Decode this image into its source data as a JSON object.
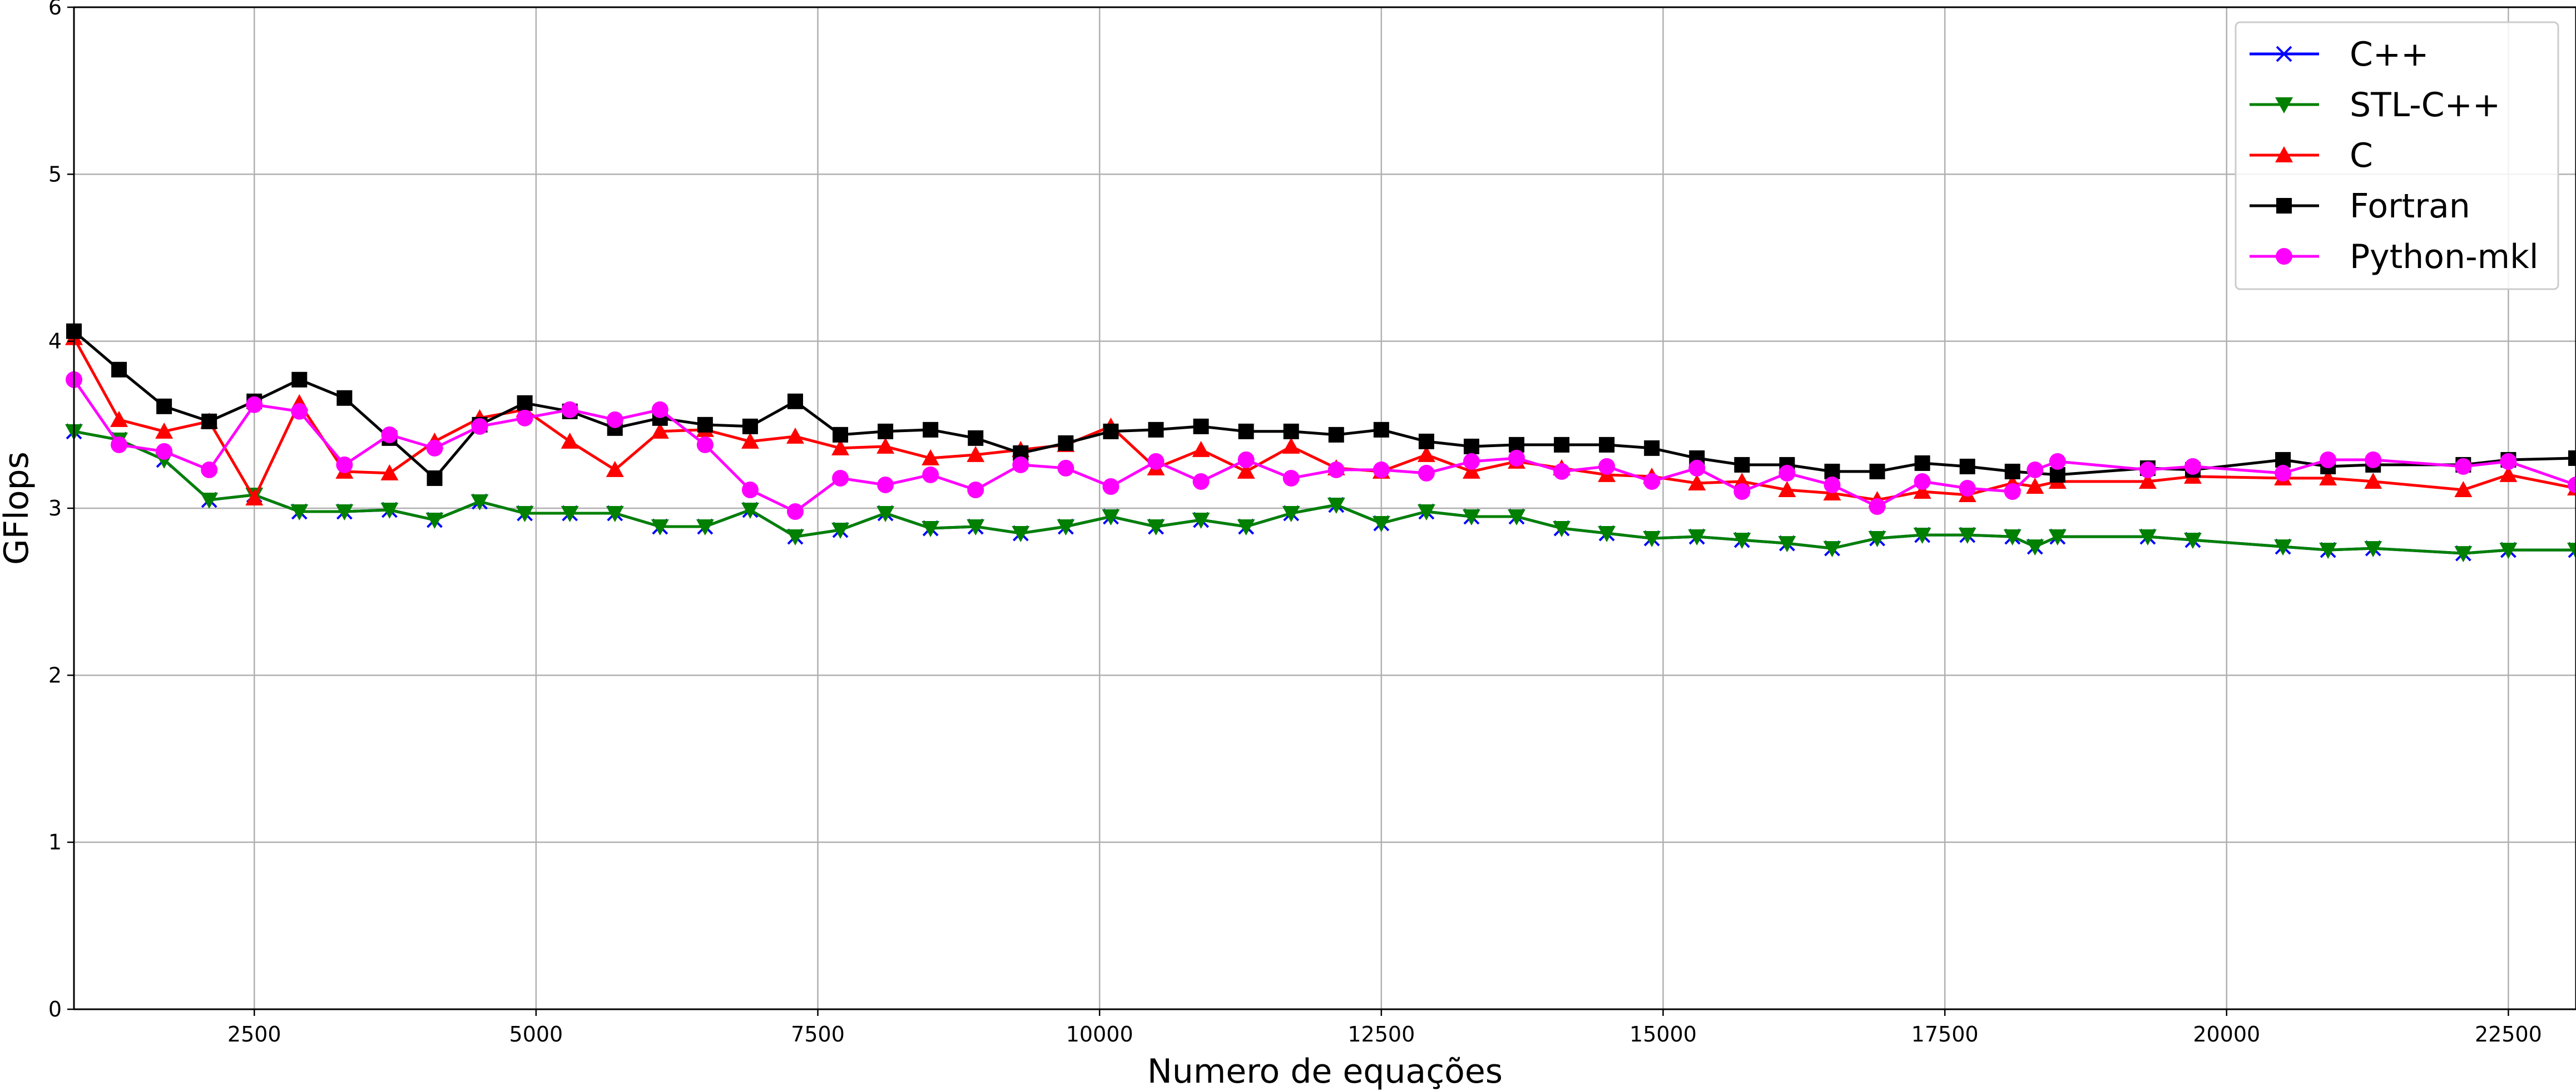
{
  "chart_data": {
    "type": "line",
    "title": "",
    "xlabel": "Numero de equações",
    "ylabel": "GFlops",
    "xlim": [
      900,
      23100
    ],
    "ylim": [
      0,
      6
    ],
    "xticks": [
      2500,
      5000,
      7500,
      10000,
      12500,
      15000,
      17500,
      20000,
      22500
    ],
    "yticks": [
      0,
      1,
      2,
      3,
      4,
      5,
      6
    ],
    "grid": true,
    "legend_position": "top-right",
    "series": [
      {
        "name": "C++",
        "color": "#0000ff",
        "marker": "x",
        "x": [
          900,
          1300,
          1700,
          2100,
          2500,
          2900,
          3300,
          3700,
          4100,
          4500,
          4900,
          5300,
          5700,
          6100,
          6500,
          6900,
          7300,
          7700,
          8100,
          8500,
          8900,
          9300,
          9700,
          10100,
          10500,
          10900,
          11300,
          11700,
          12100,
          12500,
          12900,
          13300,
          13700,
          14100,
          14500,
          14900,
          15300,
          15700,
          16100,
          16500,
          16900,
          17300,
          17700,
          18100,
          18300,
          18500,
          19300,
          19700,
          20500,
          20900,
          21300,
          22100,
          22500,
          23100
        ],
        "y": [
          3.46,
          3.41,
          3.29,
          3.05,
          3.08,
          2.98,
          2.98,
          2.99,
          2.93,
          3.04,
          2.97,
          2.97,
          2.97,
          2.89,
          2.89,
          2.99,
          2.83,
          2.87,
          2.97,
          2.88,
          2.89,
          2.85,
          2.89,
          2.95,
          2.89,
          2.93,
          2.89,
          2.97,
          3.02,
          2.91,
          2.98,
          2.95,
          2.95,
          2.88,
          2.85,
          2.82,
          2.83,
          2.81,
          2.79,
          2.76,
          2.82,
          2.84,
          2.84,
          2.83,
          2.77,
          2.83,
          2.83,
          2.81,
          2.77,
          2.75,
          2.76,
          2.73,
          2.75,
          2.75
        ]
      },
      {
        "name": "STL-C++",
        "color": "#008000",
        "marker": "v",
        "x": [
          900,
          1300,
          1700,
          2100,
          2500,
          2900,
          3300,
          3700,
          4100,
          4500,
          4900,
          5300,
          5700,
          6100,
          6500,
          6900,
          7300,
          7700,
          8100,
          8500,
          8900,
          9300,
          9700,
          10100,
          10500,
          10900,
          11300,
          11700,
          12100,
          12500,
          12900,
          13300,
          13700,
          14100,
          14500,
          14900,
          15300,
          15700,
          16100,
          16500,
          16900,
          17300,
          17700,
          18100,
          18300,
          18500,
          19300,
          19700,
          20500,
          20900,
          21300,
          22100,
          22500,
          23100
        ],
        "y": [
          3.46,
          3.41,
          3.29,
          3.05,
          3.08,
          2.98,
          2.98,
          2.99,
          2.93,
          3.04,
          2.97,
          2.97,
          2.97,
          2.89,
          2.89,
          2.99,
          2.83,
          2.87,
          2.97,
          2.88,
          2.89,
          2.85,
          2.89,
          2.95,
          2.89,
          2.93,
          2.89,
          2.97,
          3.02,
          2.91,
          2.98,
          2.95,
          2.95,
          2.88,
          2.85,
          2.82,
          2.83,
          2.81,
          2.79,
          2.76,
          2.82,
          2.84,
          2.84,
          2.83,
          2.77,
          2.83,
          2.83,
          2.81,
          2.77,
          2.75,
          2.76,
          2.73,
          2.75,
          2.75
        ]
      },
      {
        "name": "C",
        "color": "#ff0000",
        "marker": "^",
        "x": [
          900,
          1300,
          1700,
          2100,
          2500,
          2900,
          3300,
          3700,
          4100,
          4500,
          4900,
          5300,
          5700,
          6100,
          6500,
          6900,
          7300,
          7700,
          8100,
          8500,
          8900,
          9300,
          9700,
          10100,
          10500,
          10900,
          11300,
          11700,
          12100,
          12500,
          12900,
          13300,
          13700,
          14100,
          14500,
          14900,
          15300,
          15700,
          16100,
          16500,
          16900,
          17300,
          17700,
          18100,
          18300,
          18500,
          19300,
          19700,
          20500,
          20900,
          21300,
          22100,
          22500,
          23100
        ],
        "y": [
          4.02,
          3.53,
          3.46,
          3.52,
          3.06,
          3.63,
          3.22,
          3.21,
          3.4,
          3.54,
          3.59,
          3.4,
          3.23,
          3.46,
          3.47,
          3.4,
          3.43,
          3.36,
          3.37,
          3.3,
          3.32,
          3.35,
          3.38,
          3.49,
          3.24,
          3.35,
          3.22,
          3.37,
          3.24,
          3.22,
          3.32,
          3.22,
          3.28,
          3.24,
          3.2,
          3.19,
          3.15,
          3.16,
          3.11,
          3.09,
          3.05,
          3.1,
          3.08,
          3.15,
          3.13,
          3.16,
          3.16,
          3.19,
          3.18,
          3.18,
          3.16,
          3.11,
          3.2,
          3.12
        ]
      },
      {
        "name": "Fortran",
        "color": "#000000",
        "marker": "s",
        "x": [
          900,
          1300,
          1700,
          2100,
          2500,
          2900,
          3300,
          3700,
          4100,
          4500,
          4900,
          5300,
          5700,
          6100,
          6500,
          6900,
          7300,
          7700,
          8100,
          8500,
          8900,
          9300,
          9700,
          10100,
          10500,
          10900,
          11300,
          11700,
          12100,
          12500,
          12900,
          13300,
          13700,
          14100,
          14500,
          14900,
          15300,
          15700,
          16100,
          16500,
          16900,
          17300,
          17700,
          18100,
          18500,
          19300,
          19700,
          20500,
          20900,
          21300,
          22100,
          22500,
          23100
        ],
        "y": [
          4.06,
          3.83,
          3.61,
          3.52,
          3.64,
          3.77,
          3.66,
          3.42,
          3.18,
          3.5,
          3.63,
          3.58,
          3.48,
          3.54,
          3.5,
          3.49,
          3.64,
          3.44,
          3.46,
          3.47,
          3.42,
          3.33,
          3.39,
          3.46,
          3.47,
          3.49,
          3.46,
          3.46,
          3.44,
          3.47,
          3.4,
          3.37,
          3.38,
          3.38,
          3.38,
          3.36,
          3.3,
          3.26,
          3.26,
          3.22,
          3.22,
          3.27,
          3.25,
          3.22,
          3.2,
          3.24,
          3.23,
          3.29,
          3.25,
          3.26,
          3.26,
          3.29,
          3.3
        ]
      },
      {
        "name": "Python-mkl",
        "color": "#ff00ff",
        "marker": "o",
        "x": [
          900,
          1300,
          1700,
          2100,
          2500,
          2900,
          3300,
          3700,
          4100,
          4500,
          4900,
          5300,
          5700,
          6100,
          6500,
          6900,
          7300,
          7700,
          8100,
          8500,
          8900,
          9300,
          9700,
          10100,
          10500,
          10900,
          11300,
          11700,
          12100,
          12500,
          12900,
          13300,
          13700,
          14100,
          14500,
          14900,
          15300,
          15700,
          16100,
          16500,
          16900,
          17300,
          17700,
          18100,
          18300,
          18500,
          19300,
          19700,
          20500,
          20900,
          21300,
          22100,
          22500,
          23100
        ],
        "y": [
          3.77,
          3.38,
          3.34,
          3.23,
          3.62,
          3.58,
          3.26,
          3.44,
          3.36,
          3.49,
          3.54,
          3.59,
          3.53,
          3.59,
          3.38,
          3.11,
          2.98,
          3.18,
          3.14,
          3.2,
          3.11,
          3.26,
          3.24,
          3.13,
          3.28,
          3.16,
          3.29,
          3.18,
          3.23,
          3.23,
          3.21,
          3.28,
          3.3,
          3.22,
          3.25,
          3.16,
          3.24,
          3.1,
          3.21,
          3.14,
          3.01,
          3.16,
          3.12,
          3.1,
          3.23,
          3.28,
          3.23,
          3.25,
          3.21,
          3.29,
          3.29,
          3.25,
          3.28,
          3.14
        ]
      }
    ]
  }
}
